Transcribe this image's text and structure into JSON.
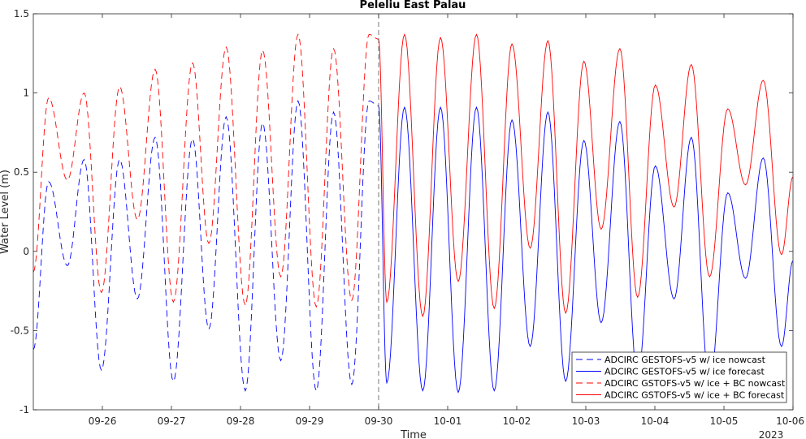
{
  "chart_data": {
    "type": "line",
    "title": "Peleliu East Palau",
    "xlabel": "Time",
    "ylabel": "Water Level (m)",
    "year_label": "2023",
    "xlim": [
      "2023-09-25 00:00",
      "2023-10-06 00:00"
    ],
    "ylim": [
      -1,
      1.5
    ],
    "yticks": [
      -1,
      -0.5,
      0,
      0.5,
      1,
      1.5
    ],
    "ytick_labels": [
      "-1",
      "-0.5",
      "0",
      "0.5",
      "1",
      "1.5"
    ],
    "xticks": [
      "2023-09-26",
      "2023-09-27",
      "2023-09-28",
      "2023-09-29",
      "2023-09-30",
      "2023-10-01",
      "2023-10-02",
      "2023-10-03",
      "2023-10-04",
      "2023-10-05",
      "2023-10-06"
    ],
    "xtick_labels": [
      "09-26",
      "09-27",
      "09-28",
      "09-29",
      "09-30",
      "10-01",
      "10-02",
      "10-03",
      "10-04",
      "10-05",
      "10-06"
    ],
    "nowcast_forecast_boundary": "2023-09-30 00:00",
    "grid": false,
    "legend_position": "bottom-right",
    "series": [
      {
        "name": "ADCIRC GESTOFS-v5 w/ ice nowcast",
        "color": "#0000ff",
        "style": "dashed",
        "x": [
          "09-25 00:00",
          "09-25 05:20",
          "09-25 11:50",
          "09-25 17:40",
          "09-25 23:40",
          "09-26 06:00",
          "09-26 12:10",
          "09-26 18:20",
          "09-27 00:40",
          "09-27 07:20",
          "09-27 13:00",
          "09-27 19:00",
          "09-28 01:40",
          "09-28 07:40",
          "09-28 14:00",
          "09-28 20:00",
          "09-29 02:20",
          "09-29 08:20",
          "09-29 14:40",
          "09-29 20:40",
          "09-30 00:00"
        ],
        "y": [
          -0.62,
          0.44,
          -0.09,
          0.58,
          -0.75,
          0.58,
          -0.3,
          0.72,
          -0.82,
          0.71,
          -0.49,
          0.85,
          -0.88,
          0.81,
          -0.69,
          0.95,
          -0.88,
          0.88,
          -0.84,
          0.95,
          0.92
        ]
      },
      {
        "name": "ADCIRC GESTOFS-v5 w/ ice forecast",
        "color": "#0000ff",
        "style": "solid",
        "x": [
          "09-30 00:00",
          "09-30 02:50",
          "09-30 09:00",
          "09-30 15:20",
          "09-30 21:30",
          "10-01 03:40",
          "10-01 10:00",
          "10-01 16:10",
          "10-01 22:20",
          "10-02 04:40",
          "10-02 10:50",
          "10-02 17:00",
          "10-02 23:20",
          "10-03 05:20",
          "10-03 11:50",
          "10-03 18:00",
          "10-04 00:10",
          "10-04 06:40",
          "10-04 12:40",
          "10-04 19:00",
          "10-05 01:20",
          "10-05 07:30",
          "10-05 13:40",
          "10-05 20:00",
          "10-06 00:00"
        ],
        "y": [
          0.92,
          -0.83,
          0.91,
          -0.88,
          0.91,
          -0.89,
          0.91,
          -0.88,
          0.83,
          -0.6,
          0.88,
          -0.82,
          0.7,
          -0.45,
          0.82,
          -0.8,
          0.54,
          -0.3,
          0.72,
          -0.85,
          0.37,
          -0.17,
          0.59,
          -0.6,
          -0.06
        ]
      },
      {
        "name": "ADCIRC GSTOFS-v5 w/ ice + BC nowcast",
        "color": "#ff0000",
        "style": "dashed",
        "x": [
          "09-25 00:00",
          "09-25 05:20",
          "09-25 11:50",
          "09-25 17:40",
          "09-25 23:40",
          "09-26 06:00",
          "09-26 12:10",
          "09-26 18:20",
          "09-27 00:40",
          "09-27 07:20",
          "09-27 13:00",
          "09-27 19:00",
          "09-28 01:40",
          "09-28 07:40",
          "09-28 14:00",
          "09-28 20:00",
          "09-29 02:20",
          "09-29 08:20",
          "09-29 14:40",
          "09-29 20:40",
          "09-30 00:00"
        ],
        "y": [
          -0.13,
          0.97,
          0.45,
          1.0,
          -0.26,
          1.04,
          0.2,
          1.15,
          -0.32,
          1.19,
          0.05,
          1.29,
          -0.34,
          1.27,
          -0.16,
          1.37,
          -0.35,
          1.28,
          -0.31,
          1.37,
          1.34
        ]
      },
      {
        "name": "ADCIRC GSTOFS-v5 w/ ice + BC forecast",
        "color": "#ff0000",
        "style": "solid",
        "x": [
          "09-30 00:00",
          "09-30 02:50",
          "09-30 09:00",
          "09-30 15:20",
          "09-30 21:30",
          "10-01 03:40",
          "10-01 10:00",
          "10-01 16:10",
          "10-01 22:20",
          "10-02 04:40",
          "10-02 10:50",
          "10-02 17:00",
          "10-02 23:20",
          "10-03 05:20",
          "10-03 11:50",
          "10-03 18:00",
          "10-04 00:10",
          "10-04 06:40",
          "10-04 12:40",
          "10-04 19:00",
          "10-05 01:20",
          "10-05 07:30",
          "10-05 13:40",
          "10-05 20:00",
          "10-06 00:00"
        ],
        "y": [
          1.34,
          -0.32,
          1.37,
          -0.41,
          1.35,
          -0.19,
          1.37,
          -0.36,
          1.31,
          0.02,
          1.33,
          -0.39,
          1.2,
          0.14,
          1.28,
          -0.29,
          1.05,
          0.28,
          1.18,
          -0.16,
          0.9,
          0.42,
          1.08,
          -0.02,
          0.47
        ]
      }
    ]
  }
}
